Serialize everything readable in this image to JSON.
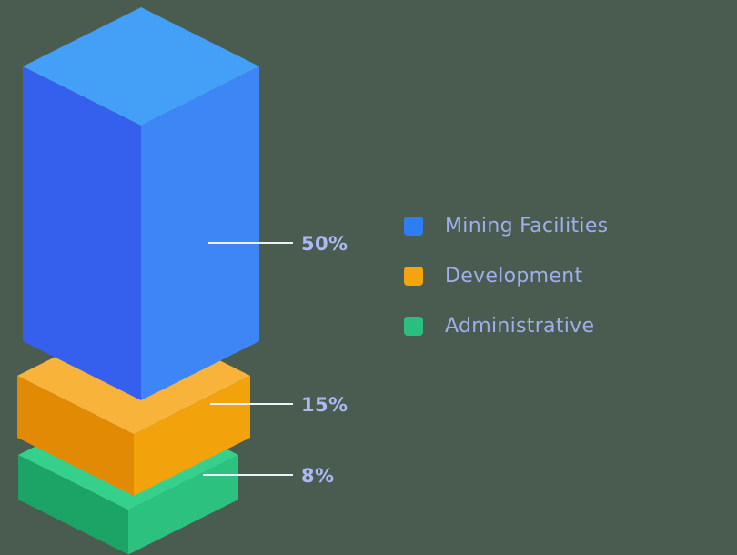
{
  "theme": {
    "background": "#4a5b4f",
    "value_label_color": "#adb9f3",
    "legend_label_color": "#9fafec",
    "leader_line_color": "#edf1f8"
  },
  "chart_data": {
    "type": "bar",
    "variant": "isometric-stacked-3d-column",
    "title": "",
    "unit": "%",
    "grid": false,
    "legend_position": "right",
    "categories": [
      "Mining Facilities",
      "Development",
      "Administrative"
    ],
    "values": [
      50,
      15,
      8
    ],
    "segments": [
      {
        "label": "Mining Facilities",
        "value": 50,
        "value_label": "50%",
        "colors": {
          "top": "#44a0f6",
          "left": "#3560ee",
          "right": "#3e86f5",
          "swatch": "#2e7df2"
        }
      },
      {
        "label": "Development",
        "value": 15,
        "value_label": "15%",
        "colors": {
          "top": "#f8b43a",
          "left": "#e28a04",
          "right": "#f2a30c",
          "swatch": "#f5a40d"
        }
      },
      {
        "label": "Administrative",
        "value": 8,
        "value_label": "8%",
        "colors": {
          "top": "#34d08c",
          "left": "#1ca467",
          "right": "#2cc17e",
          "swatch": "#2abf7e"
        }
      }
    ]
  }
}
